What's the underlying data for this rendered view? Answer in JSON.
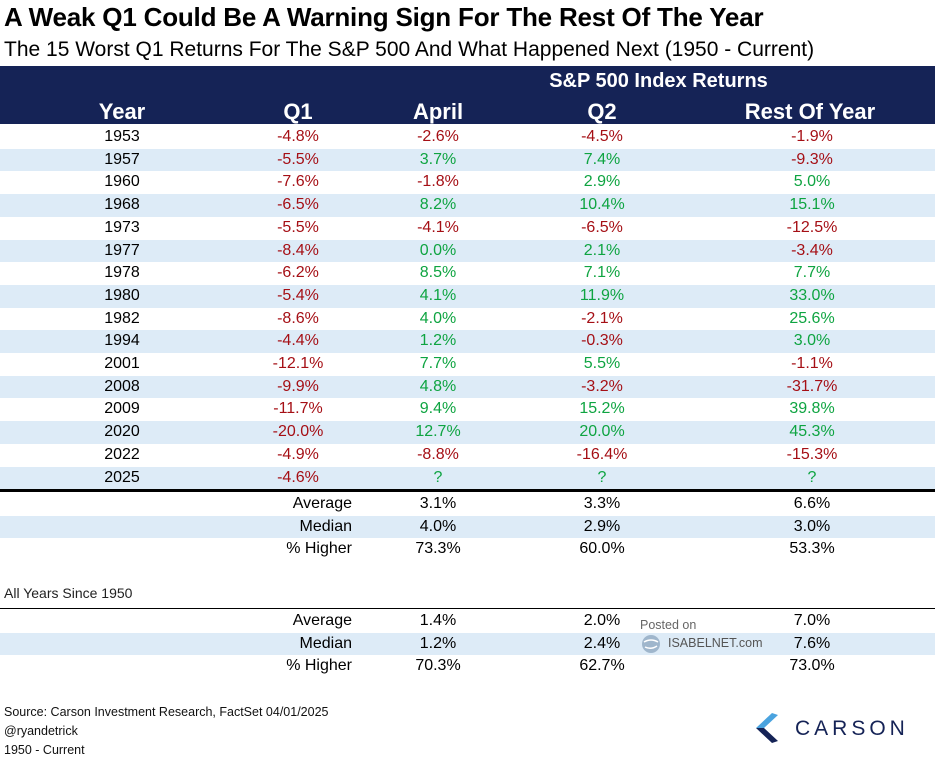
{
  "title": "A Weak Q1 Could Be A Warning Sign For The Rest Of The Year",
  "subtitle": "The 15 Worst Q1 Returns For The S&P 500 And What Happened Next (1950 - Current)",
  "chart_data": {
    "type": "table",
    "group_header": "S&P 500 Index Returns",
    "columns": [
      "Year",
      "Q1",
      "April",
      "Q2",
      "Rest Of Year"
    ],
    "rows": [
      {
        "year": "1953",
        "q1": "-4.8%",
        "april": "-2.6%",
        "q2": "-4.5%",
        "rest": "-1.9%"
      },
      {
        "year": "1957",
        "q1": "-5.5%",
        "april": "3.7%",
        "q2": "7.4%",
        "rest": "-9.3%"
      },
      {
        "year": "1960",
        "q1": "-7.6%",
        "april": "-1.8%",
        "q2": "2.9%",
        "rest": "5.0%"
      },
      {
        "year": "1968",
        "q1": "-6.5%",
        "april": "8.2%",
        "q2": "10.4%",
        "rest": "15.1%"
      },
      {
        "year": "1973",
        "q1": "-5.5%",
        "april": "-4.1%",
        "q2": "-6.5%",
        "rest": "-12.5%"
      },
      {
        "year": "1977",
        "q1": "-8.4%",
        "april": "0.0%",
        "q2": "2.1%",
        "rest": "-3.4%"
      },
      {
        "year": "1978",
        "q1": "-6.2%",
        "april": "8.5%",
        "q2": "7.1%",
        "rest": "7.7%"
      },
      {
        "year": "1980",
        "q1": "-5.4%",
        "april": "4.1%",
        "q2": "11.9%",
        "rest": "33.0%"
      },
      {
        "year": "1982",
        "q1": "-8.6%",
        "april": "4.0%",
        "q2": "-2.1%",
        "rest": "25.6%"
      },
      {
        "year": "1994",
        "q1": "-4.4%",
        "april": "1.2%",
        "q2": "-0.3%",
        "rest": "3.0%"
      },
      {
        "year": "2001",
        "q1": "-12.1%",
        "april": "7.7%",
        "q2": "5.5%",
        "rest": "-1.1%"
      },
      {
        "year": "2008",
        "q1": "-9.9%",
        "april": "4.8%",
        "q2": "-3.2%",
        "rest": "-31.7%"
      },
      {
        "year": "2009",
        "q1": "-11.7%",
        "april": "9.4%",
        "q2": "15.2%",
        "rest": "39.8%"
      },
      {
        "year": "2020",
        "q1": "-20.0%",
        "april": "12.7%",
        "q2": "20.0%",
        "rest": "45.3%"
      },
      {
        "year": "2022",
        "q1": "-4.9%",
        "april": "-8.8%",
        "q2": "-16.4%",
        "rest": "-15.3%"
      },
      {
        "year": "2025",
        "q1": "-4.6%",
        "april": "?",
        "q2": "?",
        "rest": "?"
      }
    ],
    "summary_worst": [
      {
        "label": "Average",
        "april": "3.1%",
        "q2": "3.3%",
        "rest": "6.6%"
      },
      {
        "label": "Median",
        "april": "4.0%",
        "q2": "2.9%",
        "rest": "3.0%"
      },
      {
        "label": "% Higher",
        "april": "73.3%",
        "q2": "60.0%",
        "rest": "53.3%"
      }
    ],
    "all_years_label": "All Years Since 1950",
    "summary_all": [
      {
        "label": "Average",
        "april": "1.4%",
        "q2": "2.0%",
        "rest": "7.0%"
      },
      {
        "label": "Median",
        "april": "1.2%",
        "q2": "2.4%",
        "rest": "7.6%"
      },
      {
        "label": "% Higher",
        "april": "70.3%",
        "q2": "62.7%",
        "rest": "73.0%"
      }
    ]
  },
  "colors": {
    "header_bg": "#152356",
    "shade": "#ddebf7",
    "negative": "#a50f15",
    "positive": "#0ea441"
  },
  "watermark": {
    "posted": "Posted on",
    "site": "ISABELNET.com"
  },
  "footer": {
    "source": "Source: Carson Investment Research, FactSet 04/01/2025",
    "handle": "@ryandetrick",
    "range": "1950 - Current"
  },
  "logo": {
    "text": "CARSON",
    "icon": "carson-chevron-icon"
  }
}
